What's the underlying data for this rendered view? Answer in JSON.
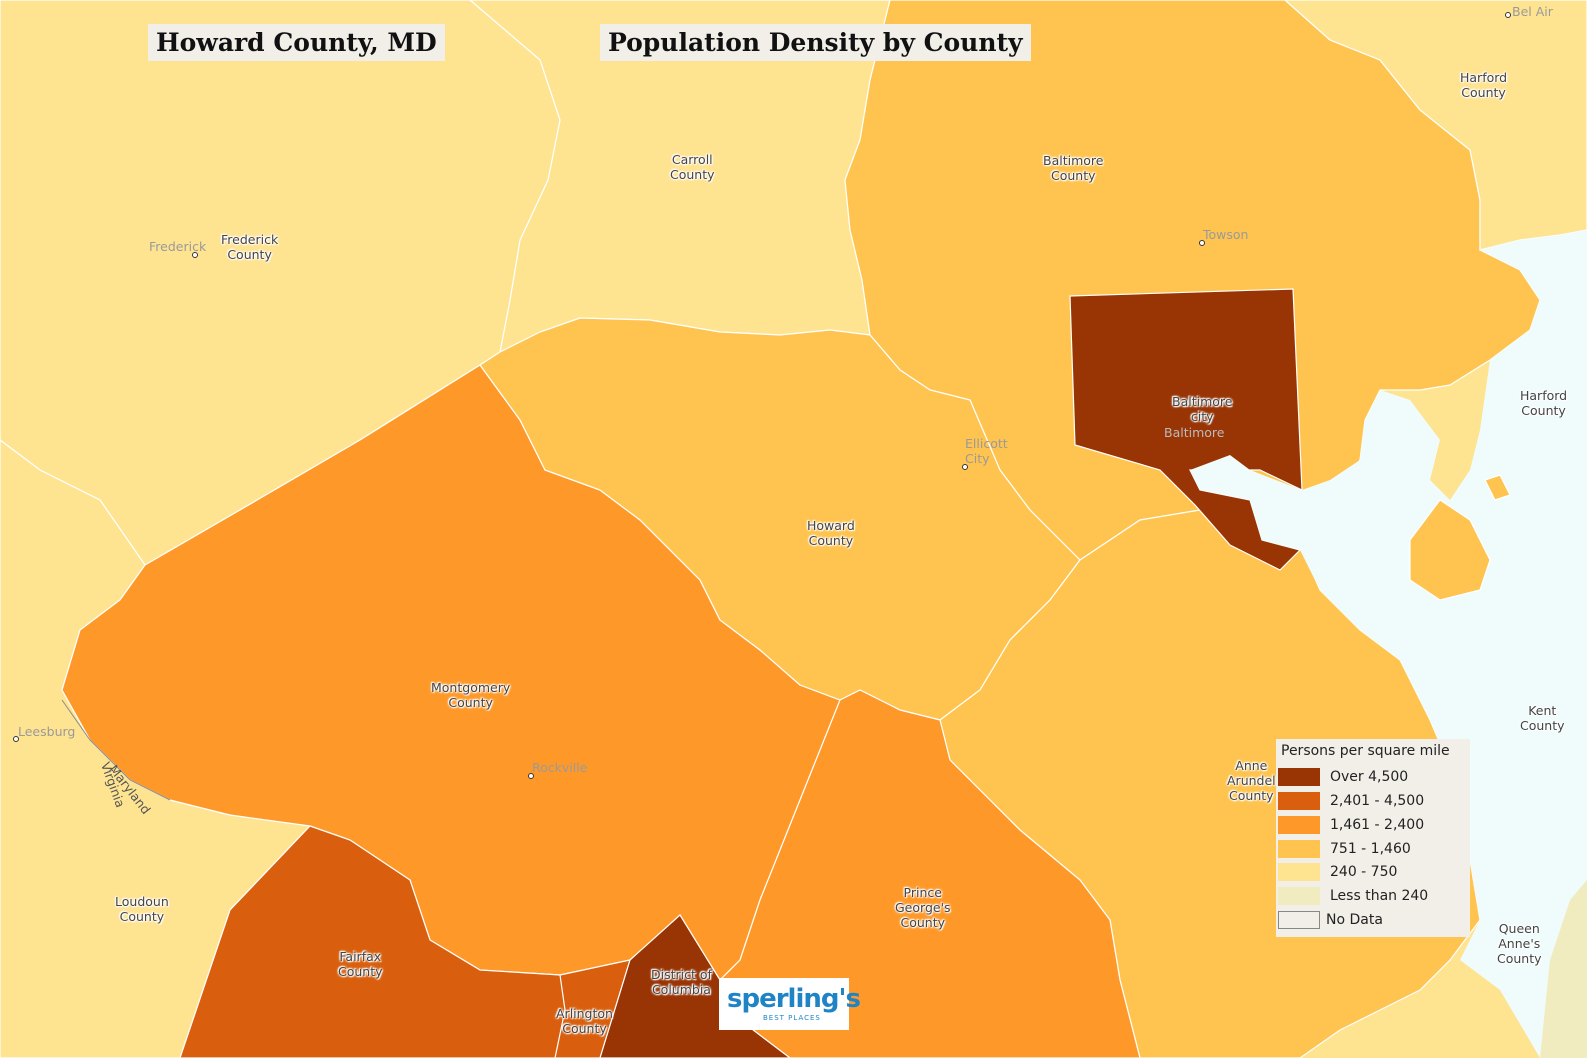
{
  "title": "Howard County, MD",
  "subtitle": "Population Density by County",
  "legend": {
    "title": "Persons per square mile",
    "items": [
      {
        "label": "Over 4,500",
        "color": "#993404"
      },
      {
        "label": "2,401 - 4,500",
        "color": "#d95f0e"
      },
      {
        "label": "1,461 - 2,400",
        "color": "#fe9929"
      },
      {
        "label": "751 - 1,460",
        "color": "#fec44f"
      },
      {
        "label": "240 - 750",
        "color": "#fee391"
      },
      {
        "label": "Less than 240",
        "color": "#f0ecc0"
      },
      {
        "label": "No Data",
        "color": "#f2efe9"
      }
    ]
  },
  "counties": {
    "frederick": "Frederick\nCounty",
    "carroll": "Carroll\nCounty",
    "baltimore_county": "Baltimore\nCounty",
    "harford_top": "Harford\nCounty",
    "harford_right": "Harford\nCounty",
    "baltimore_city": "Baltimore\ncity",
    "howard": "Howard\nCounty",
    "montgomery": "Montgomery\nCounty",
    "anne_arundel": "Anne\nArundel\nCounty",
    "kent": "Kent\nCounty",
    "prince_georges": "Prince\nGeorge's\nCounty",
    "queen_annes": "Queen\nAnne's\nCounty",
    "loudoun": "Loudoun\nCounty",
    "fairfax": "Fairfax\nCounty",
    "dc": "District of\nColumbia",
    "arlington": "Arlington\nCounty"
  },
  "cities": {
    "bel_air": "Bel Air",
    "frederick": "Frederick",
    "towson": "Towson",
    "baltimore": "Baltimore",
    "ellicott_city": "Ellicott\nCity",
    "leesburg": "Leesburg",
    "rockville": "Rockville"
  },
  "state_labels": {
    "maryland": "Maryland",
    "virginia": "Virginia"
  },
  "logo": {
    "main": "sperling's",
    "sub": "BEST PLACES"
  }
}
